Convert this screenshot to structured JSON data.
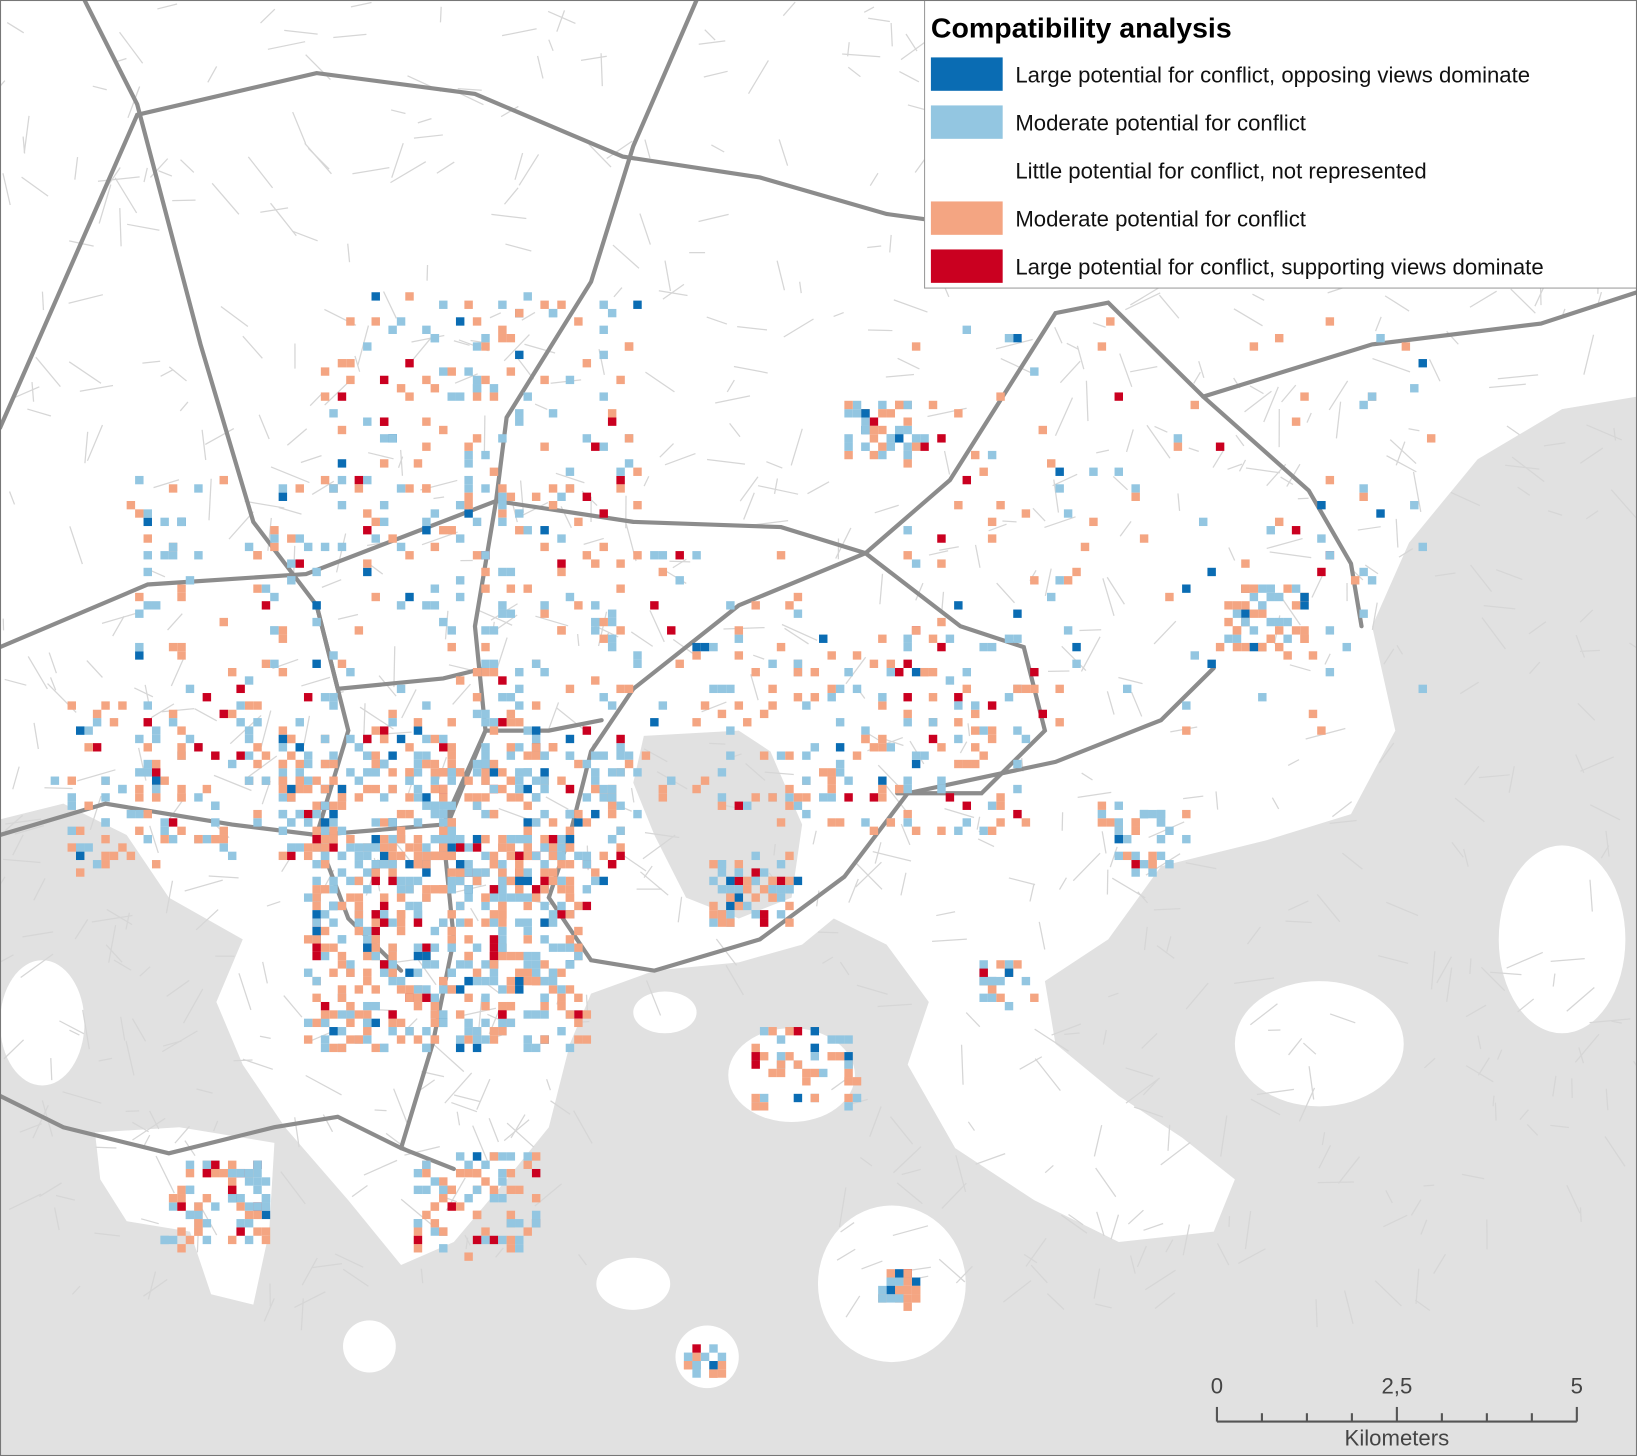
{
  "legend": {
    "title": "Compatibility analysis",
    "items": [
      {
        "label": "Large potential for conflict, opposing views dominate",
        "color": "#0a6cb3"
      },
      {
        "label": "Moderate potential for conflict",
        "color": "#93c6e1"
      },
      {
        "label": "Little potential for conflict, not represented",
        "color": "#ffffff"
      },
      {
        "label": "Moderate potential for conflict",
        "color": "#f4a582"
      },
      {
        "label": "Large potential for conflict, supporting views dominate",
        "color": "#ca0020"
      }
    ]
  },
  "scale_bar": {
    "ticks": [
      "0",
      "2,5",
      "5"
    ],
    "unit": "Kilometers"
  }
}
